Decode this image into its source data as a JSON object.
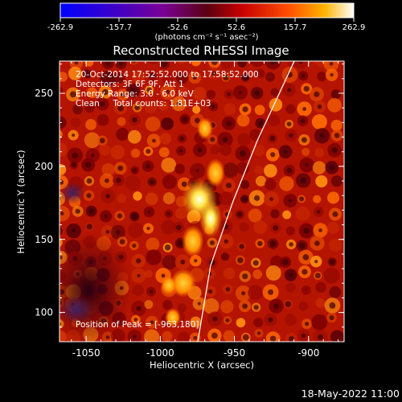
{
  "colorbar": {
    "ticks": [
      "-262.9",
      "-157.7",
      "-52.6",
      "52.6",
      "157.7",
      "262.9"
    ],
    "unit_label": "(photons cm⁻² s⁻¹ asec⁻²)"
  },
  "title": "Reconstructed RHESSI Image",
  "annotations": {
    "time_range": "20-Oct-2014 17:52:52.000 to 17:58:52.000",
    "detectors": "Detectors: 3F 6F 9F, Att 1",
    "energy_range": "Energy Range: 3.0 - 6.0 keV",
    "clean_counts": "Clean     Total counts: 1.81E+03",
    "peak_position": "Position of Peak = [-963,180]"
  },
  "axes": {
    "xlabel": "Heliocentric X (arcsec)",
    "ylabel": "Heliocentric Y (arcsec)",
    "x_ticks": [
      "-1050",
      "-1000",
      "-950",
      "-900"
    ],
    "y_ticks": [
      "100",
      "150",
      "200",
      "250"
    ],
    "xlim": [
      -1068,
      -876
    ],
    "ylim": [
      80,
      272
    ]
  },
  "image": {
    "peak": [
      -963,
      180
    ],
    "colormap": "red-temperature"
  },
  "footer": {
    "date": "18-May-2022 11:00"
  }
}
